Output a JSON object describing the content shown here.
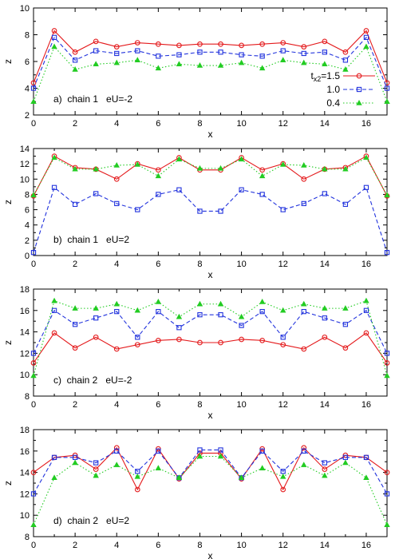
{
  "chart_data": [
    {
      "type": "line",
      "annotation": "a)  chain 1   eU=-2",
      "xlabel": "x",
      "ylabel": "z",
      "xlim": [
        0,
        17
      ],
      "ylim": [
        2,
        10
      ],
      "xticks": [
        "0",
        "2",
        "4",
        "6",
        "8",
        "10",
        "12",
        "14",
        "16"
      ],
      "yticks": [
        "2",
        "4",
        "6",
        "8",
        "10"
      ],
      "legend_position": "right",
      "x": [
        0,
        1,
        2,
        3,
        4,
        5,
        6,
        7,
        8,
        9,
        10,
        11,
        12,
        13,
        14,
        15,
        16,
        17
      ],
      "series": [
        {
          "name": "t",
          "name_sub": "x2",
          "name_suffix": "=1.5",
          "color": "#e41a1c",
          "style": "solid",
          "marker": "circle",
          "values": [
            4.4,
            8.3,
            6.7,
            7.5,
            7.1,
            7.4,
            7.3,
            7.2,
            7.3,
            7.3,
            7.2,
            7.3,
            7.4,
            7.1,
            7.5,
            6.7,
            8.3,
            4.4
          ]
        },
        {
          "name": "1.0",
          "color": "#2233dd",
          "style": "dashed",
          "marker": "square",
          "values": [
            4.0,
            7.8,
            6.1,
            6.8,
            6.6,
            6.8,
            6.4,
            6.5,
            6.7,
            6.7,
            6.5,
            6.4,
            6.8,
            6.6,
            6.7,
            6.1,
            7.8,
            4.0
          ]
        },
        {
          "name": "0.4",
          "color": "#22cc22",
          "style": "dotted",
          "marker": "triangle",
          "values": [
            3.0,
            7.1,
            5.4,
            5.8,
            5.9,
            6.1,
            5.5,
            5.8,
            5.7,
            5.7,
            5.9,
            5.5,
            6.1,
            5.9,
            5.8,
            5.4,
            7.1,
            3.0
          ]
        }
      ]
    },
    {
      "type": "line",
      "annotation": "b)  chain 1   eU=2",
      "xlabel": "x",
      "ylabel": "z",
      "xlim": [
        0,
        17
      ],
      "ylim": [
        0,
        14
      ],
      "xticks": [
        "0",
        "2",
        "4",
        "6",
        "8",
        "10",
        "12",
        "14",
        "16"
      ],
      "yticks": [
        "0",
        "2",
        "4",
        "6",
        "8",
        "10",
        "12",
        "14"
      ],
      "x": [
        0,
        1,
        2,
        3,
        4,
        5,
        6,
        7,
        8,
        9,
        10,
        11,
        12,
        13,
        14,
        15,
        16,
        17
      ],
      "series": [
        {
          "color": "#e41a1c",
          "style": "solid",
          "marker": "circle",
          "values": [
            7.8,
            13.0,
            11.5,
            11.3,
            10.0,
            12.0,
            11.2,
            12.8,
            11.2,
            11.2,
            12.8,
            11.2,
            12.0,
            10.0,
            11.3,
            11.5,
            13.0,
            7.8
          ]
        },
        {
          "color": "#2233dd",
          "style": "dashed",
          "marker": "square",
          "values": [
            0.4,
            8.9,
            6.7,
            8.1,
            6.8,
            6.0,
            8.0,
            8.6,
            5.8,
            5.8,
            8.6,
            8.0,
            6.0,
            6.8,
            8.1,
            6.7,
            8.9,
            0.4
          ]
        },
        {
          "color": "#22cc22",
          "style": "dotted",
          "marker": "triangle",
          "values": [
            7.9,
            12.8,
            11.3,
            11.3,
            11.8,
            11.9,
            10.4,
            12.6,
            11.4,
            11.4,
            12.6,
            10.4,
            11.9,
            11.8,
            11.3,
            11.3,
            12.8,
            7.9
          ]
        }
      ]
    },
    {
      "type": "line",
      "annotation": "c)  chain 2   eU=-2",
      "xlabel": "x",
      "ylabel": "z",
      "xlim": [
        0,
        17
      ],
      "ylim": [
        8,
        18
      ],
      "xticks": [
        "0",
        "2",
        "4",
        "6",
        "8",
        "10",
        "12",
        "14",
        "16"
      ],
      "yticks": [
        "8",
        "10",
        "12",
        "14",
        "16",
        "18"
      ],
      "x": [
        0,
        1,
        2,
        3,
        4,
        5,
        6,
        7,
        8,
        9,
        10,
        11,
        12,
        13,
        14,
        15,
        16,
        17
      ],
      "series": [
        {
          "color": "#e41a1c",
          "style": "solid",
          "marker": "circle",
          "values": [
            11.1,
            13.9,
            12.5,
            13.5,
            12.4,
            12.8,
            13.2,
            13.3,
            13.0,
            13.0,
            13.3,
            13.2,
            12.8,
            12.4,
            13.5,
            12.5,
            13.9,
            11.1
          ]
        },
        {
          "color": "#2233dd",
          "style": "dashed",
          "marker": "square",
          "values": [
            12.0,
            16.0,
            14.7,
            15.3,
            15.9,
            13.5,
            15.9,
            14.4,
            15.6,
            15.6,
            14.6,
            15.9,
            13.5,
            15.9,
            15.3,
            14.7,
            16.0,
            12.0
          ]
        },
        {
          "color": "#22cc22",
          "style": "dotted",
          "marker": "triangle",
          "values": [
            9.9,
            16.9,
            16.2,
            16.2,
            16.6,
            16.0,
            16.8,
            15.4,
            16.6,
            16.6,
            15.4,
            16.8,
            16.0,
            16.6,
            16.2,
            16.2,
            16.9,
            9.9
          ]
        }
      ]
    },
    {
      "type": "line",
      "annotation": "d)  chain 2   eU=2",
      "xlabel": "x",
      "ylabel": "z",
      "xlim": [
        0,
        17
      ],
      "ylim": [
        8,
        18
      ],
      "xticks": [
        "0",
        "2",
        "4",
        "6",
        "8",
        "10",
        "12",
        "14",
        "16"
      ],
      "yticks": [
        "8",
        "10",
        "12",
        "14",
        "16",
        "18"
      ],
      "x": [
        0,
        1,
        2,
        3,
        4,
        5,
        6,
        7,
        8,
        9,
        10,
        11,
        12,
        13,
        14,
        15,
        16,
        17
      ],
      "series": [
        {
          "color": "#e41a1c",
          "style": "solid",
          "marker": "circle",
          "values": [
            14.0,
            15.4,
            15.6,
            14.3,
            16.3,
            12.4,
            16.2,
            13.4,
            15.8,
            15.8,
            13.4,
            16.2,
            12.4,
            16.3,
            14.3,
            15.6,
            15.4,
            14.0
          ]
        },
        {
          "color": "#2233dd",
          "style": "dashed",
          "marker": "square",
          "values": [
            12.0,
            15.4,
            15.4,
            14.9,
            16.0,
            14.1,
            16.0,
            13.5,
            16.1,
            16.1,
            13.5,
            16.0,
            14.1,
            16.0,
            14.9,
            15.4,
            15.4,
            12.0
          ]
        },
        {
          "color": "#22cc22",
          "style": "dotted",
          "marker": "triangle",
          "values": [
            9.1,
            13.5,
            14.9,
            13.7,
            14.7,
            13.6,
            14.4,
            13.5,
            15.5,
            15.5,
            13.5,
            14.4,
            13.6,
            14.7,
            13.7,
            14.9,
            13.5,
            9.1
          ]
        }
      ]
    }
  ]
}
